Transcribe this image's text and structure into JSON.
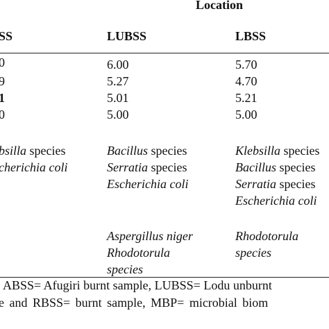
{
  "header": {
    "location_label": "Location",
    "col_left_partial": "SS",
    "col_lubss": "LUBSS",
    "col_lbss": "LBSS"
  },
  "rows": {
    "left_partial": [
      "0",
      "9",
      "1",
      "0"
    ],
    "lubss": [
      "6.00",
      "5.27",
      "5.01",
      "5.00"
    ],
    "lbss": [
      "5.70",
      "4.70",
      "5.21",
      "5.00"
    ]
  },
  "bacteria": {
    "left_partial": [
      {
        "genus": "bsilla",
        "rest": " species"
      },
      {
        "genus": "cherichia coli",
        "rest": ""
      }
    ],
    "lubss": [
      {
        "genus": "Bacillus",
        "rest": " species"
      },
      {
        "genus": "Serratia",
        "rest": " species"
      },
      {
        "genus": "Escherichia coli",
        "rest": ""
      }
    ],
    "lbss": [
      {
        "genus": "Klebsilla",
        "rest": " species"
      },
      {
        "genus": "Bacillus",
        "rest": " species"
      },
      {
        "genus": "Serratia",
        "rest": " species"
      },
      {
        "genus": "Escherichia coli",
        "rest": ""
      }
    ]
  },
  "fungi": {
    "lubss": [
      "Aspergillus niger",
      "Rhodotorula",
      "species"
    ],
    "lbss": [
      "Rhodotorula",
      "species"
    ]
  },
  "footer": {
    "line1": "ABSS= Afugiri burnt sample, LUBSS= Lodu unburnt",
    "line2": "e and RBSS= burnt sample, MBP= microbial biom"
  }
}
